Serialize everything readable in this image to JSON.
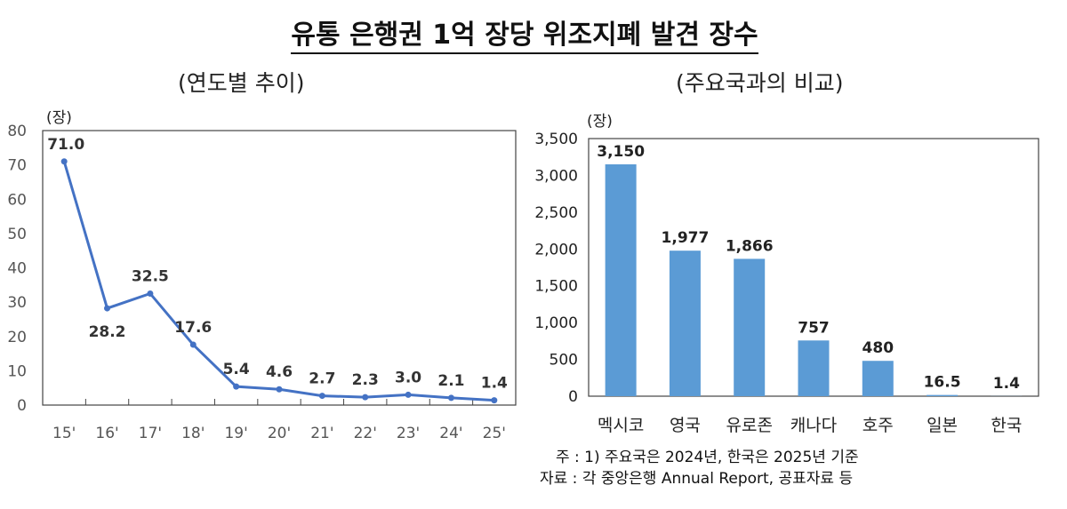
{
  "title": "유통 은행권 1억 장당 위조지폐 발견 장수",
  "chart_data": [
    {
      "type": "line",
      "subtitle": "(연도별 추이)",
      "unit": "(장)",
      "categories": [
        "15'",
        "16'",
        "17'",
        "18'",
        "19'",
        "20'",
        "21'",
        "22'",
        "23'",
        "24'",
        "25'"
      ],
      "values": [
        71.0,
        28.2,
        32.5,
        17.6,
        5.4,
        4.6,
        2.7,
        2.3,
        3.0,
        2.1,
        1.4
      ],
      "labels": [
        "71.0",
        "28.2",
        "32.5",
        "17.6",
        "5.4",
        "4.6",
        "2.7",
        "2.3",
        "3.0",
        "2.1",
        "1.4"
      ],
      "ylim": [
        0,
        80
      ],
      "yticks": [
        "0",
        "10",
        "20",
        "30",
        "40",
        "50",
        "60",
        "70",
        "80"
      ],
      "color": "#4472C4",
      "grid": false
    },
    {
      "type": "bar",
      "subtitle": "(주요국과의 비교)",
      "unit": "(장)",
      "categories": [
        "멕시코",
        "영국",
        "유로존",
        "캐나다",
        "호주",
        "일본",
        "한국"
      ],
      "values": [
        3150,
        1977,
        1866,
        757,
        480,
        16.5,
        1.4
      ],
      "labels": [
        "3,150",
        "1,977",
        "1,866",
        "757",
        "480",
        "16.5",
        "1.4"
      ],
      "ylim": [
        0,
        3500
      ],
      "yticks": [
        "0",
        "500",
        "1,000",
        "1,500",
        "2,000",
        "2,500",
        "3,000",
        "3,500"
      ],
      "color": "#5B9BD5",
      "grid": false
    }
  ],
  "notes": [
    "주 : 1) 주요국은 2024년, 한국은 2025년 기준",
    "자료 : 각 중앙은행 Annual Report, 공표자료 등"
  ]
}
